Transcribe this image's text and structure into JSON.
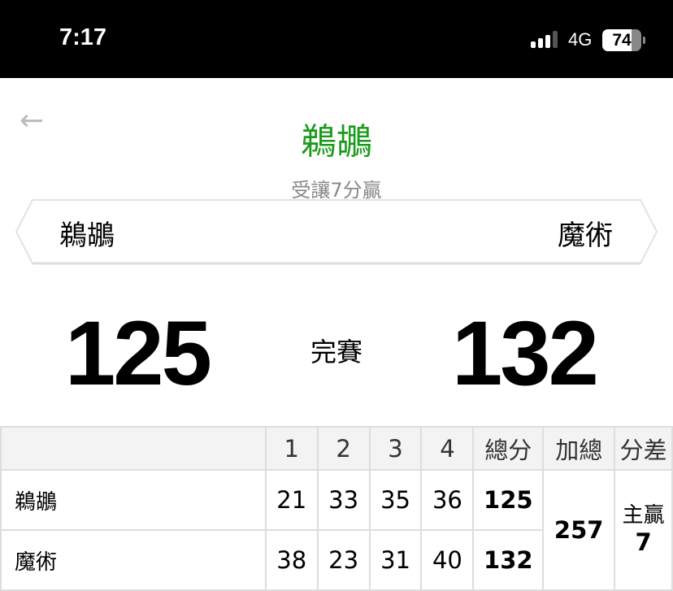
{
  "status_bar": {
    "time": "7:17",
    "network": "4G",
    "battery": "74",
    "battery_level": 0.74
  },
  "header": {
    "back_icon": "arrow-left-icon",
    "title": "鵜鶘",
    "subtitle": "受讓7分贏",
    "title_color": "#1a9a1a"
  },
  "teams": {
    "away": "鵜鶘",
    "home": "魔術"
  },
  "scoreboard": {
    "away_score": "125",
    "home_score": "132",
    "state": "完賽"
  },
  "table": {
    "headers": [
      "",
      "1",
      "2",
      "3",
      "4",
      "總分",
      "加總",
      "分差"
    ],
    "rows": [
      {
        "team": "鵜鶘",
        "q": [
          "21",
          "33",
          "35",
          "36"
        ],
        "total": "125"
      },
      {
        "team": "魔術",
        "q": [
          "38",
          "23",
          "31",
          "40"
        ],
        "total": "132"
      }
    ],
    "sum": "257",
    "diff_label": "主贏",
    "diff": "7"
  }
}
